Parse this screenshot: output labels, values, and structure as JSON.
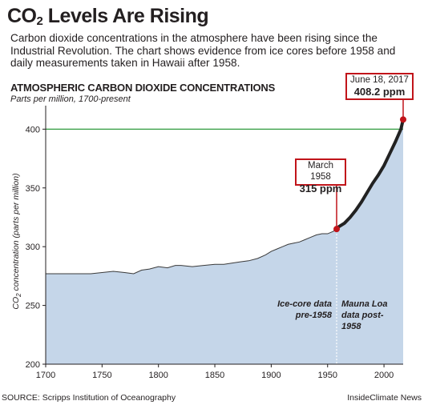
{
  "header": {
    "title_prefix": "CO",
    "title_sub": "2",
    "title_suffix": " Levels Are Rising",
    "subtitle": "Carbon dioxide concentrations in the atmosphere have been rising since the Industrial Revolution. The chart shows evidence from ice cores before 1958 and daily measurements taken in Hawaii after 1958."
  },
  "chart_data": {
    "type": "area",
    "title": "ATMOSPHERIC CARBON DIOXIDE CONCENTRATIONS",
    "subtitle": "Parts per million, 1700-present",
    "ylabel_prefix": "CO",
    "ylabel_sub": "2",
    "ylabel_suffix": " concentration (parts per million)",
    "xlim": [
      1700,
      2017
    ],
    "ylim": [
      200,
      420
    ],
    "xticks": [
      1700,
      1750,
      1800,
      1850,
      1900,
      1950,
      2000
    ],
    "yticks": [
      200,
      250,
      300,
      350,
      400
    ],
    "reference_line": 400,
    "colors": {
      "fill": "#c5d6e9",
      "line": "#3a3a3a",
      "reference": "#2e9a3c",
      "accent": "#c1141a",
      "divider": "#ffffff"
    },
    "series": [
      {
        "x": [
          1700,
          1720,
          1740,
          1750,
          1760,
          1770,
          1778,
          1785,
          1792,
          1800,
          1808,
          1815,
          1820,
          1830,
          1840,
          1850,
          1858,
          1865,
          1872,
          1880,
          1888,
          1895,
          1900,
          1905,
          1910,
          1915,
          1920,
          1925,
          1930,
          1935,
          1940,
          1945,
          1950,
          1955,
          1958
        ],
        "y": [
          277,
          277,
          277,
          278,
          279,
          278,
          277,
          280,
          281,
          283,
          282,
          284,
          284,
          283,
          284,
          285,
          285,
          286,
          287,
          288,
          290,
          293,
          296,
          298,
          300,
          302,
          303,
          304,
          306,
          308,
          310,
          311,
          311,
          313,
          315
        ]
      },
      {
        "x": [
          1958,
          1960,
          1965,
          1970,
          1975,
          1980,
          1985,
          1990,
          1995,
          2000,
          2005,
          2010,
          2015,
          2017
        ],
        "y": [
          315,
          317,
          320,
          325,
          331,
          338,
          346,
          354,
          361,
          369,
          379,
          389,
          400,
          408.2
        ]
      }
    ],
    "callouts": [
      {
        "date": "March 1958",
        "value": "315 ppm",
        "x": 1958,
        "y": 315
      },
      {
        "date": "June 18, 2017",
        "value": "408.2 ppm",
        "x": 2017,
        "y": 408.2
      }
    ],
    "annotations": {
      "icecore_line1": "Ice-core data",
      "icecore_line2": "pre-1958",
      "maunaloa_line1": "Mauna Loa",
      "maunaloa_line2": "data post-",
      "maunaloa_line3": "1958"
    }
  },
  "footer": {
    "source": "SOURCE: Scripps Institution of Oceanography",
    "credit": "InsideClimate News"
  }
}
